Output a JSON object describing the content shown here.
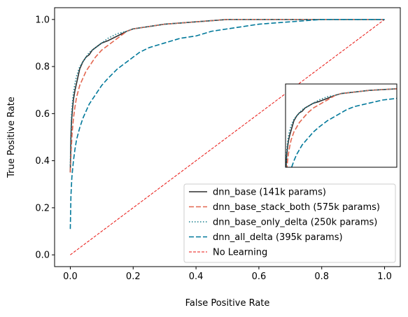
{
  "chart_data": {
    "type": "line",
    "title": "",
    "xlabel": "False Positive Rate",
    "ylabel": "True Positive Rate",
    "xlim": [
      -0.05,
      1.05
    ],
    "ylim": [
      -0.05,
      1.05
    ],
    "xticks": [
      0.0,
      0.2,
      0.4,
      0.6,
      0.8,
      1.0
    ],
    "yticks": [
      0.0,
      0.2,
      0.4,
      0.6,
      0.8,
      1.0
    ],
    "xtick_labels": [
      "0.0",
      "0.2",
      "0.4",
      "0.6",
      "0.8",
      "1.0"
    ],
    "ytick_labels": [
      "0.0",
      "0.2",
      "0.4",
      "0.6",
      "0.8",
      "1.0"
    ],
    "grid": false,
    "legend_position": "lower-right",
    "series": [
      {
        "name": "dnn_base (141k params)",
        "color": "#2f2f2f",
        "dash": "solid",
        "x": [
          0.0,
          0.002,
          0.004,
          0.007,
          0.01,
          0.015,
          0.02,
          0.025,
          0.03,
          0.04,
          0.05,
          0.06,
          0.07,
          0.08,
          0.1,
          0.12,
          0.15,
          0.18,
          0.2,
          0.25,
          0.3,
          0.4,
          0.5,
          0.6,
          0.8,
          1.0
        ],
        "y": [
          0.35,
          0.5,
          0.57,
          0.62,
          0.66,
          0.7,
          0.73,
          0.76,
          0.79,
          0.82,
          0.84,
          0.85,
          0.87,
          0.88,
          0.9,
          0.91,
          0.93,
          0.95,
          0.96,
          0.97,
          0.98,
          0.99,
          1.0,
          1.0,
          1.0,
          1.0
        ]
      },
      {
        "name": "dnn_base_stack_both (575k params)",
        "color": "#e3664f",
        "dash": "dashed",
        "x": [
          0.0,
          0.003,
          0.006,
          0.01,
          0.015,
          0.02,
          0.03,
          0.04,
          0.05,
          0.06,
          0.08,
          0.1,
          0.12,
          0.15,
          0.18,
          0.2,
          0.25,
          0.3,
          0.4,
          0.5,
          0.6,
          0.8,
          1.0
        ],
        "y": [
          0.35,
          0.45,
          0.52,
          0.58,
          0.63,
          0.67,
          0.72,
          0.75,
          0.78,
          0.8,
          0.84,
          0.87,
          0.89,
          0.92,
          0.95,
          0.96,
          0.97,
          0.98,
          0.99,
          1.0,
          1.0,
          1.0,
          1.0
        ]
      },
      {
        "name": "dnn_base_only_delta (250k params)",
        "color": "#1a7f8e",
        "dash": "dotted",
        "x": [
          0.0,
          0.002,
          0.004,
          0.007,
          0.01,
          0.015,
          0.02,
          0.025,
          0.03,
          0.04,
          0.05,
          0.06,
          0.07,
          0.08,
          0.1,
          0.12,
          0.15,
          0.18,
          0.2,
          0.25,
          0.3,
          0.4,
          0.5,
          0.6,
          0.8,
          1.0
        ],
        "y": [
          0.38,
          0.52,
          0.6,
          0.65,
          0.69,
          0.73,
          0.76,
          0.78,
          0.8,
          0.82,
          0.84,
          0.86,
          0.87,
          0.88,
          0.9,
          0.92,
          0.94,
          0.95,
          0.96,
          0.97,
          0.98,
          0.99,
          1.0,
          1.0,
          1.0,
          1.0
        ]
      },
      {
        "name": "dnn_all_delta (395k params)",
        "color": "#00789a",
        "dash": "dashed",
        "x": [
          0.0,
          0.002,
          0.005,
          0.01,
          0.015,
          0.02,
          0.03,
          0.04,
          0.05,
          0.06,
          0.08,
          0.1,
          0.12,
          0.15,
          0.18,
          0.2,
          0.22,
          0.25,
          0.3,
          0.35,
          0.4,
          0.45,
          0.5,
          0.55,
          0.6,
          0.7,
          0.8,
          0.9,
          1.0
        ],
        "y": [
          0.11,
          0.25,
          0.33,
          0.4,
          0.45,
          0.49,
          0.54,
          0.58,
          0.61,
          0.64,
          0.68,
          0.72,
          0.75,
          0.79,
          0.82,
          0.84,
          0.86,
          0.88,
          0.9,
          0.92,
          0.93,
          0.95,
          0.96,
          0.97,
          0.98,
          0.99,
          1.0,
          1.0,
          1.0
        ]
      },
      {
        "name": "No Learning",
        "color": "#e8130f",
        "dash": "dashed-fine",
        "x": [
          0.0,
          1.0
        ],
        "y": [
          0.0,
          1.0
        ]
      }
    ],
    "inset": {
      "xlim": [
        0.0,
        0.4
      ],
      "ylim": [
        0.5,
        1.02
      ],
      "ticks": false
    }
  }
}
